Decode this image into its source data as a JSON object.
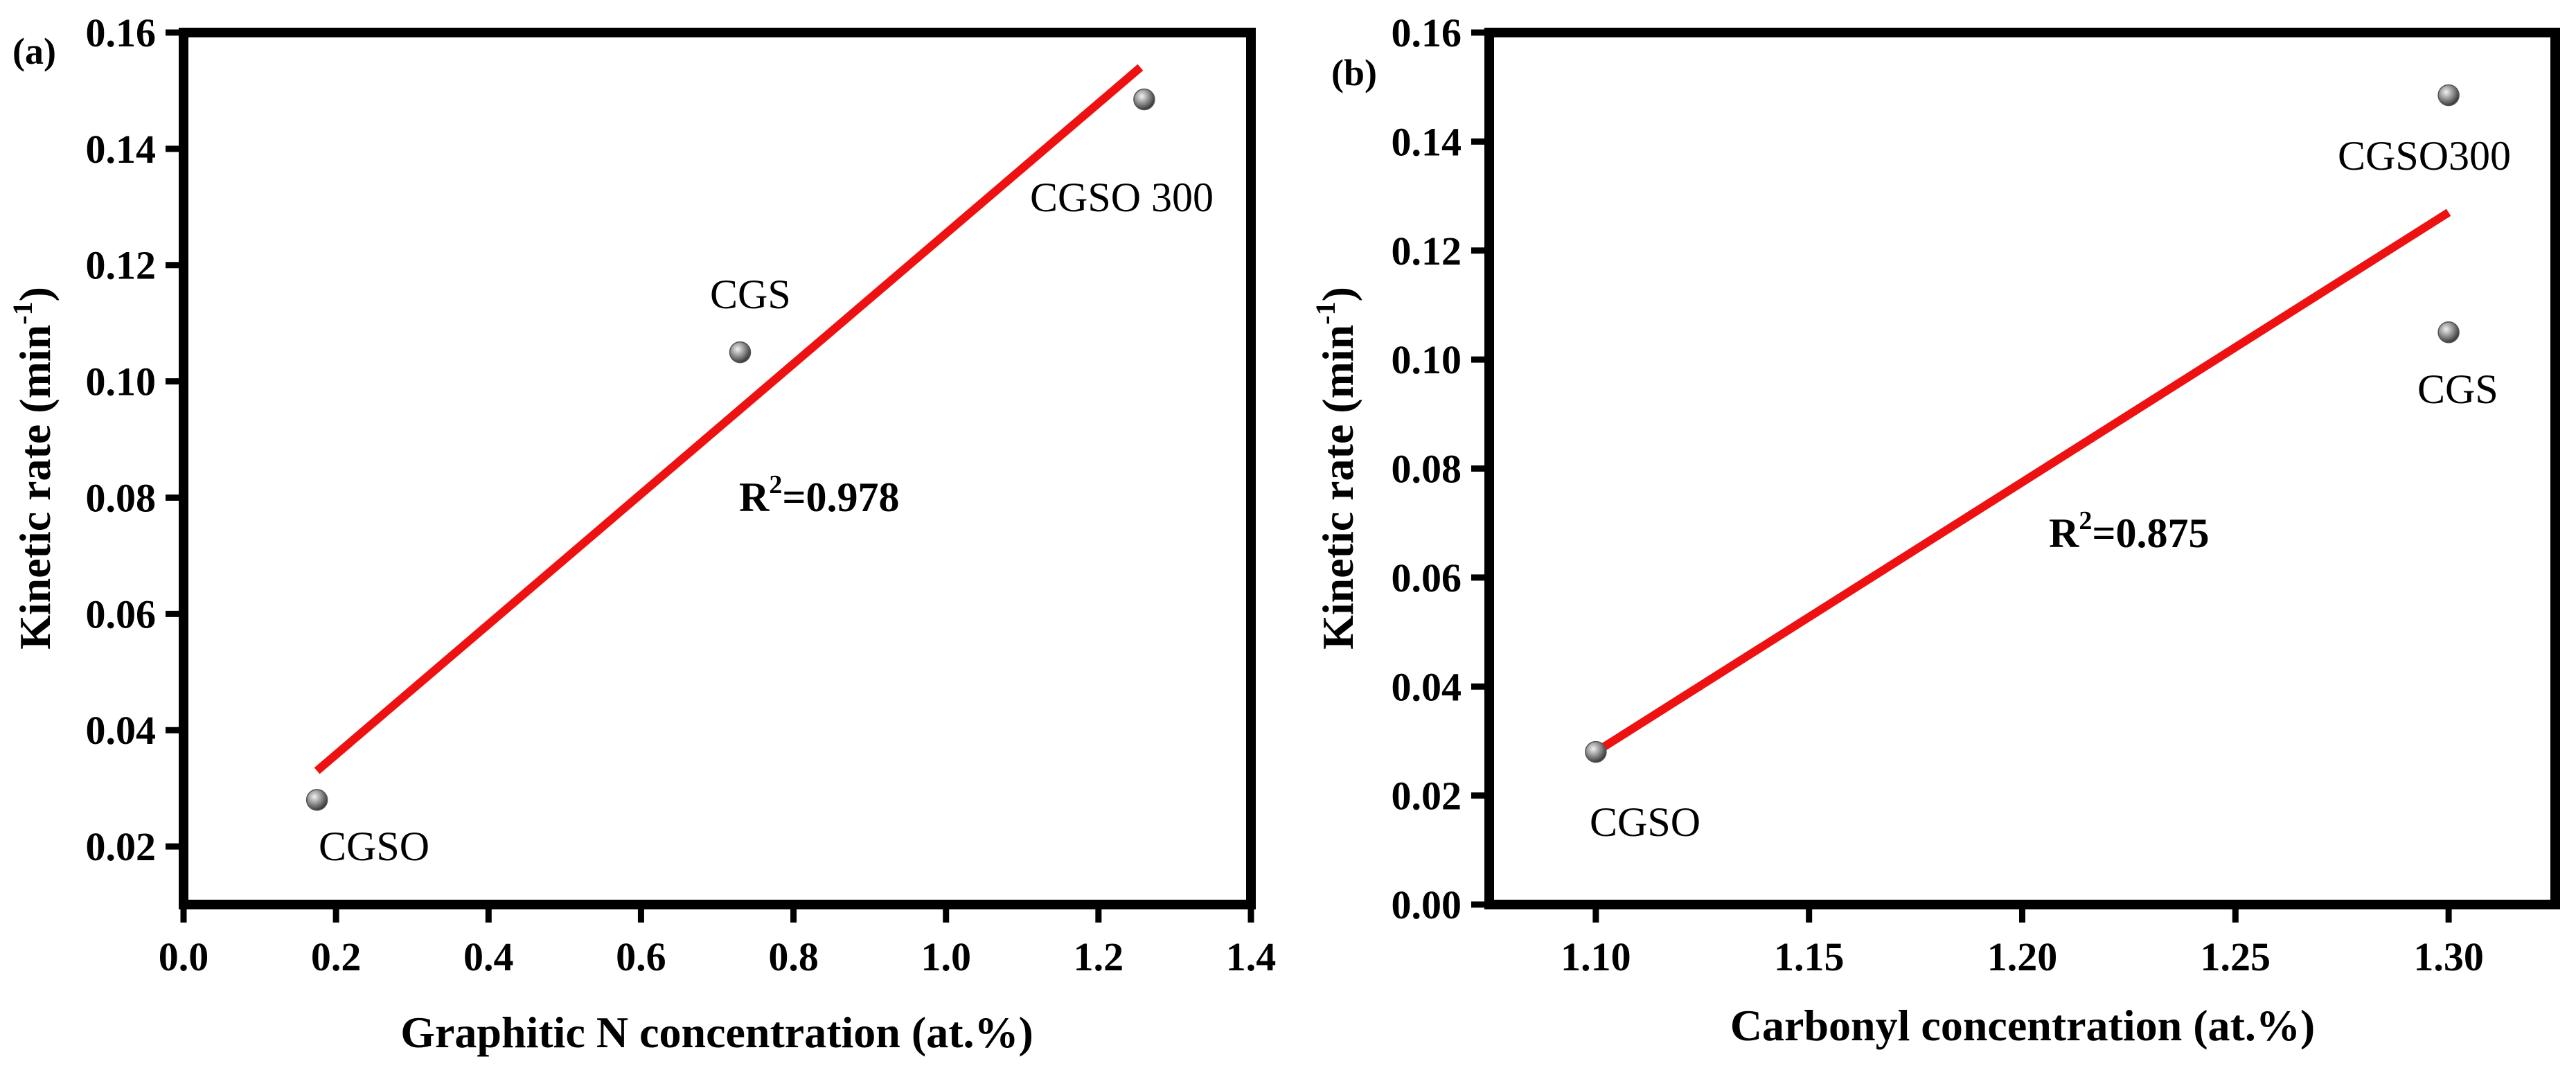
{
  "colors": {
    "fit_line": "#ee1111",
    "marker": "#8c8c8c",
    "axis": "#000000"
  },
  "chart_data": [
    {
      "type": "scatter",
      "panel_label": "(a)",
      "xlabel": "Graphitic N concentration (at.%)",
      "ylabel_main": "Kinetic rate (min",
      "ylabel_sup": "-1",
      "ylabel_close": ")",
      "xlim": [
        0.0,
        1.4
      ],
      "ylim": [
        0.01,
        0.16
      ],
      "xticks": [
        0.0,
        0.2,
        0.4,
        0.6,
        0.8,
        1.0,
        1.2,
        1.4
      ],
      "xtick_labels": [
        "0.0",
        "0.2",
        "0.4",
        "0.6",
        "0.8",
        "1.0",
        "1.2",
        "1.4"
      ],
      "yticks": [
        0.02,
        0.04,
        0.06,
        0.08,
        0.1,
        0.12,
        0.14,
        0.16
      ],
      "ytick_labels": [
        "0.02",
        "0.04",
        "0.06",
        "0.08",
        "0.10",
        "0.12",
        "0.14",
        "0.16"
      ],
      "points": [
        {
          "label": "CGSO",
          "x": 0.175,
          "y": 0.028
        },
        {
          "label": "CGS",
          "x": 0.73,
          "y": 0.105
        },
        {
          "label": "CGSO 300",
          "x": 1.26,
          "y": 0.1485
        }
      ],
      "fit_line": {
        "x": [
          0.175,
          1.255
        ],
        "y": [
          0.033,
          0.154
        ]
      },
      "r2_prefix": "R",
      "r2_sup": "2",
      "r2_value": "=0.978"
    },
    {
      "type": "scatter",
      "panel_label": "(b)",
      "xlabel": "Carbonyl concentration (at.%)",
      "ylabel_main": "Kinetic rate (min",
      "ylabel_sup": "-1",
      "ylabel_close": ")",
      "xlim": [
        1.075,
        1.325
      ],
      "ylim": [
        0.0,
        0.16
      ],
      "xticks": [
        1.1,
        1.15,
        1.2,
        1.25,
        1.3
      ],
      "xtick_labels": [
        "1.10",
        "1.15",
        "1.20",
        "1.25",
        "1.30"
      ],
      "yticks": [
        0.0,
        0.02,
        0.04,
        0.06,
        0.08,
        0.1,
        0.12,
        0.14,
        0.16
      ],
      "ytick_labels": [
        "0.00",
        "0.02",
        "0.04",
        "0.06",
        "0.08",
        "0.10",
        "0.12",
        "0.14",
        "0.16"
      ],
      "points": [
        {
          "label": "CGSO",
          "x": 1.1,
          "y": 0.028
        },
        {
          "label": "CGS",
          "x": 1.3,
          "y": 0.105
        },
        {
          "label": "CGSO300",
          "x": 1.3,
          "y": 0.1485
        }
      ],
      "fit_line": {
        "x": [
          1.1,
          1.3
        ],
        "y": [
          0.028,
          0.127
        ]
      },
      "r2_prefix": "R",
      "r2_sup": "2",
      "r2_value": "=0.875"
    }
  ]
}
